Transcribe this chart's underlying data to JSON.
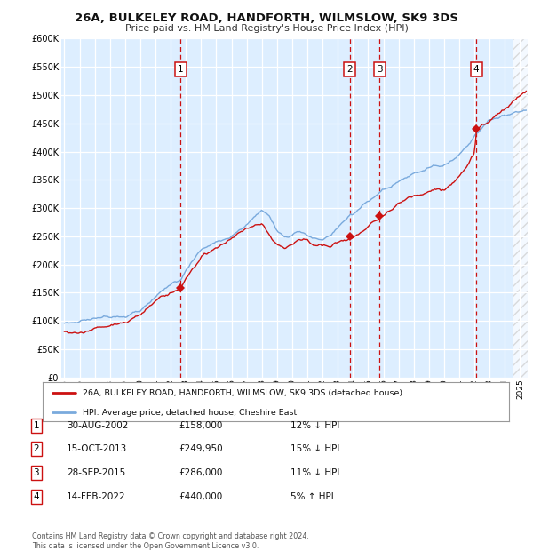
{
  "title": "26A, BULKELEY ROAD, HANDFORTH, WILMSLOW, SK9 3DS",
  "subtitle": "Price paid vs. HM Land Registry's House Price Index (HPI)",
  "bg_color": "#ddeeff",
  "ylim": [
    0,
    600000
  ],
  "yticks": [
    0,
    50000,
    100000,
    150000,
    200000,
    250000,
    300000,
    350000,
    400000,
    450000,
    500000,
    550000,
    600000
  ],
  "xlim_start": 1994.8,
  "xlim_end": 2025.5,
  "hpi_color": "#7aaadd",
  "price_color": "#cc1111",
  "purchases": [
    {
      "year": 2002.66,
      "price": 158000,
      "label": "1"
    },
    {
      "year": 2013.79,
      "price": 249950,
      "label": "2"
    },
    {
      "year": 2015.74,
      "price": 286000,
      "label": "3"
    },
    {
      "year": 2022.12,
      "price": 440000,
      "label": "4"
    }
  ],
  "legend_address": "26A, BULKELEY ROAD, HANDFORTH, WILMSLOW, SK9 3DS (detached house)",
  "legend_hpi": "HPI: Average price, detached house, Cheshire East",
  "table_rows": [
    {
      "num": "1",
      "date": "30-AUG-2002",
      "price": "£158,000",
      "pct": "12% ↓ HPI"
    },
    {
      "num": "2",
      "date": "15-OCT-2013",
      "price": "£249,950",
      "pct": "15% ↓ HPI"
    },
    {
      "num": "3",
      "date": "28-SEP-2015",
      "price": "£286,000",
      "pct": "11% ↓ HPI"
    },
    {
      "num": "4",
      "date": "14-FEB-2022",
      "price": "£440,000",
      "pct": "5% ↑ HPI"
    }
  ],
  "footer": "Contains HM Land Registry data © Crown copyright and database right 2024.\nThis data is licensed under the Open Government Licence v3.0."
}
